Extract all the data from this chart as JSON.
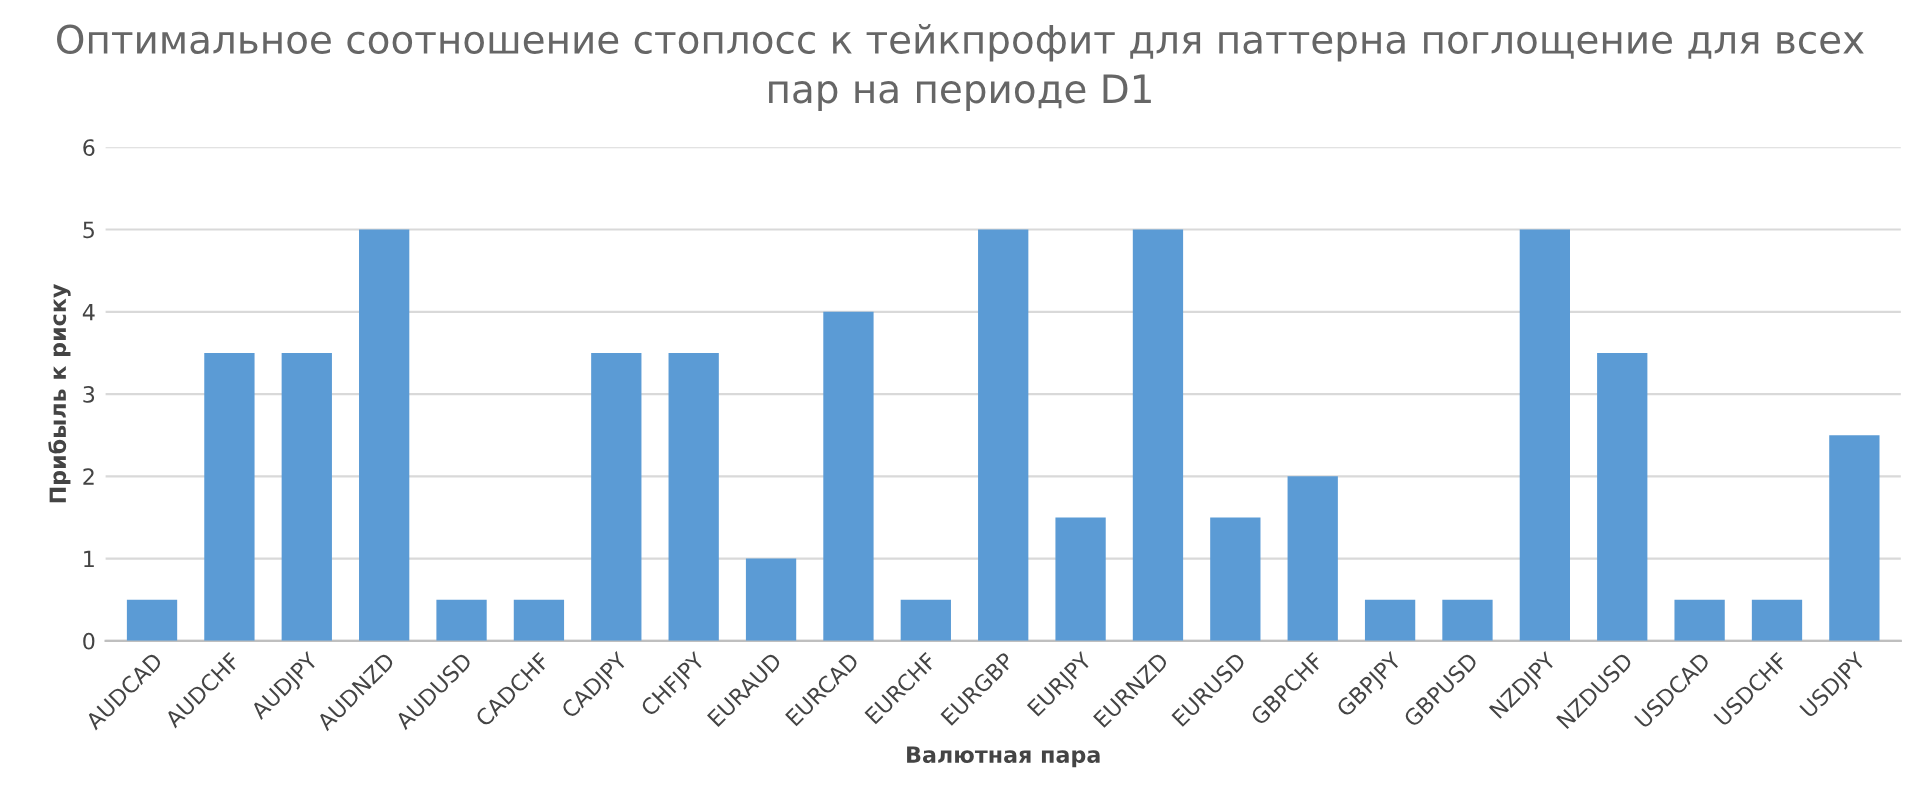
{
  "chart_data": {
    "type": "bar",
    "title": "Оптимальное соотношение стоплосс к тейкпрофит для паттерна поглощение для всех\nпар на периоде D1",
    "xlabel": "Валютная пара",
    "ylabel": "Прибыль к риску",
    "categories": [
      "AUDCAD",
      "AUDCHF",
      "AUDJPY",
      "AUDNZD",
      "AUDUSD",
      "CADCHF",
      "CADJPY",
      "CHFJPY",
      "EURAUD",
      "EURCAD",
      "EURCHF",
      "EURGBP",
      "EURJPY",
      "EURNZD",
      "EURUSD",
      "GBPCHF",
      "GBPJPY",
      "GBPUSD",
      "NZDJPY",
      "NZDUSD",
      "USDCAD",
      "USDCHF",
      "USDJPY"
    ],
    "values": [
      0.5,
      3.5,
      3.5,
      5,
      0.5,
      0.5,
      3.5,
      3.5,
      1,
      4,
      0.5,
      5,
      1.5,
      5,
      1.5,
      2,
      0.5,
      0.5,
      5,
      3.5,
      0.5,
      0.5,
      2.5
    ],
    "color": "#5b9bd5",
    "ylim": [
      0,
      6
    ],
    "yticks": [
      0,
      1,
      2,
      3,
      4,
      5,
      6
    ],
    "grid": "y"
  }
}
